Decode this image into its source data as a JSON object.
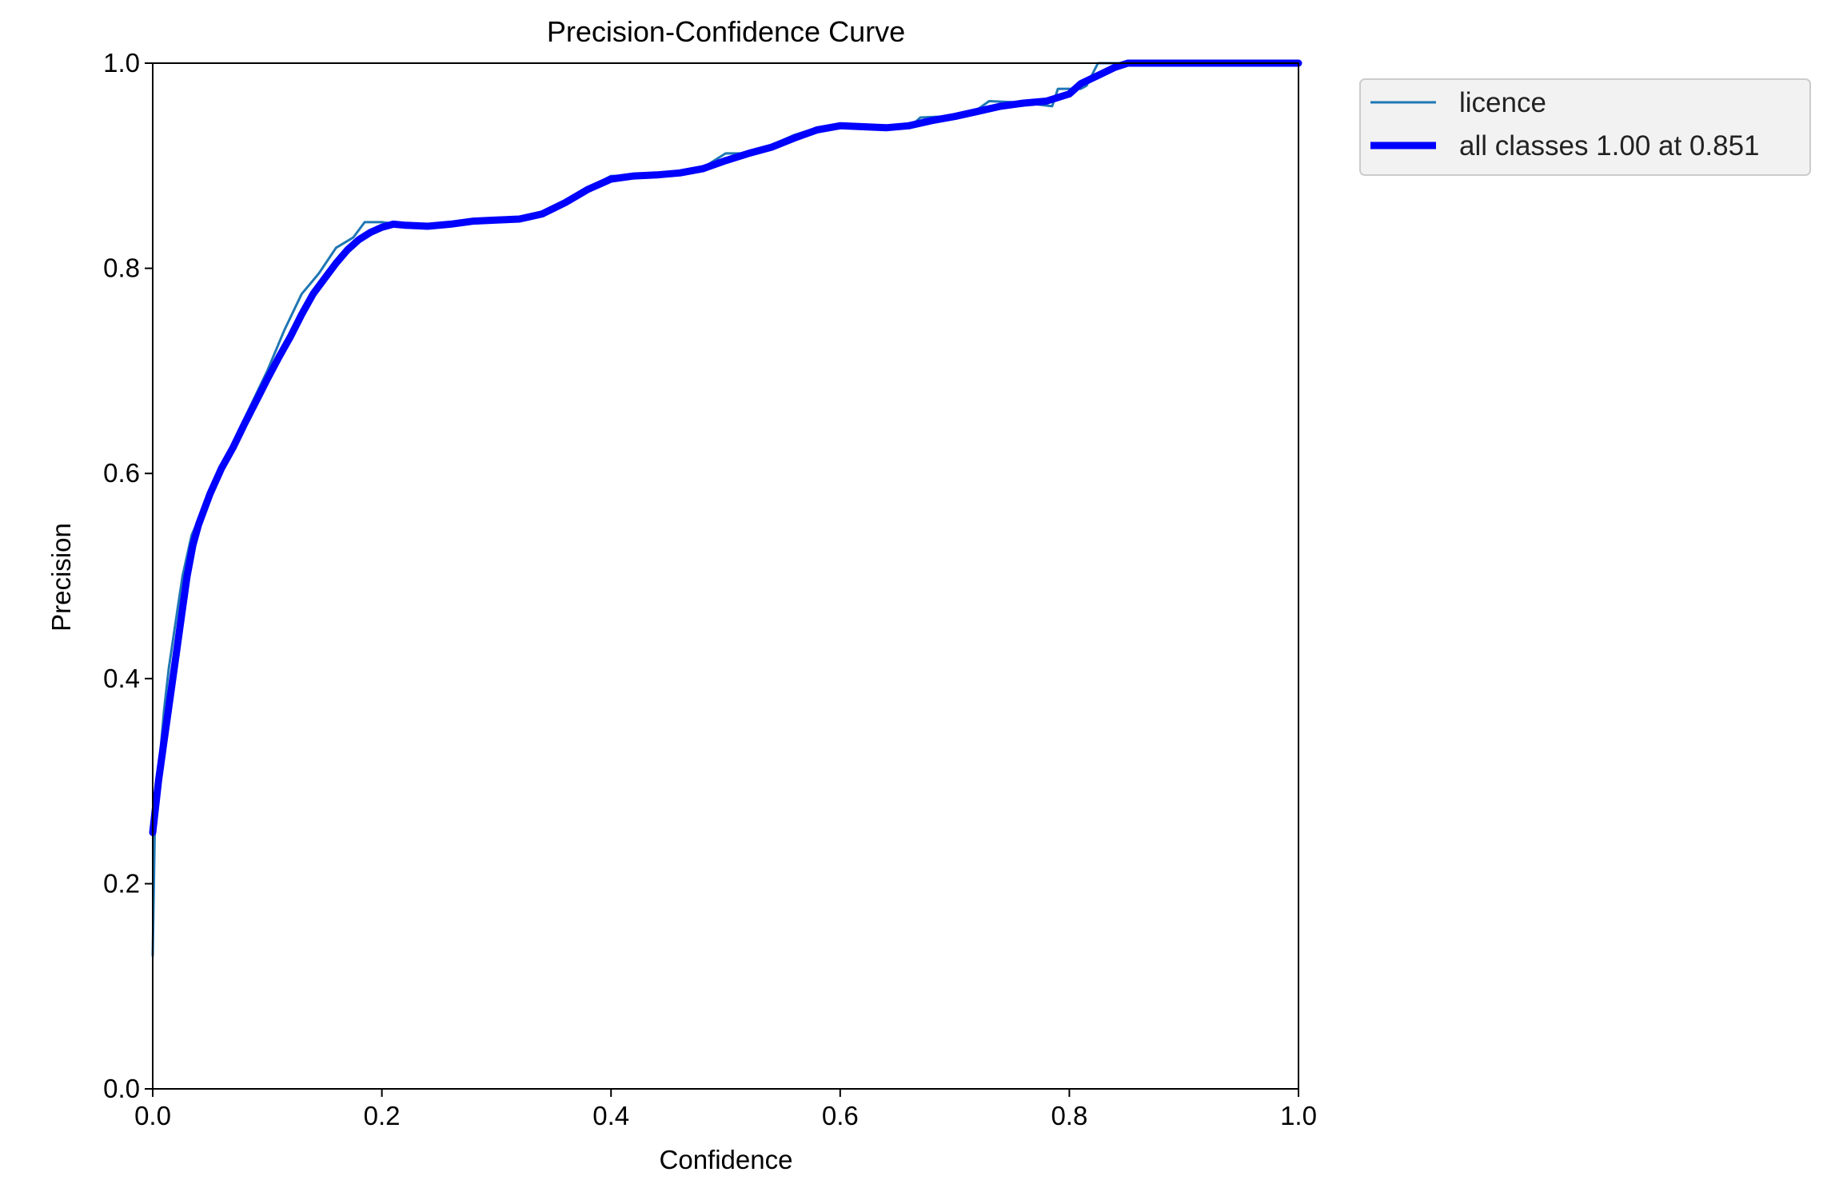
{
  "chart_data": {
    "type": "line",
    "title": "Precision-Confidence Curve",
    "xlabel": "Confidence",
    "ylabel": "Precision",
    "xlim": [
      0.0,
      1.0
    ],
    "ylim": [
      0.0,
      1.0
    ],
    "xticks": [
      "0.0",
      "0.2",
      "0.4",
      "0.6",
      "0.8",
      "1.0"
    ],
    "yticks": [
      "0.0",
      "0.2",
      "0.4",
      "0.6",
      "0.8",
      "1.0"
    ],
    "grid": false,
    "legend_position": "outside-top-right",
    "series": [
      {
        "name": "licence",
        "color": "#1f77b4",
        "style": "thin",
        "points": [
          [
            0.0,
            0.13
          ],
          [
            0.002,
            0.27
          ],
          [
            0.006,
            0.32
          ],
          [
            0.01,
            0.37
          ],
          [
            0.014,
            0.41
          ],
          [
            0.018,
            0.44
          ],
          [
            0.022,
            0.47
          ],
          [
            0.026,
            0.5
          ],
          [
            0.03,
            0.52
          ],
          [
            0.034,
            0.54
          ],
          [
            0.038,
            0.55
          ],
          [
            0.045,
            0.57
          ],
          [
            0.055,
            0.595
          ],
          [
            0.07,
            0.63
          ],
          [
            0.085,
            0.665
          ],
          [
            0.1,
            0.7
          ],
          [
            0.115,
            0.74
          ],
          [
            0.13,
            0.775
          ],
          [
            0.145,
            0.795
          ],
          [
            0.16,
            0.82
          ],
          [
            0.175,
            0.83
          ],
          [
            0.185,
            0.845
          ],
          [
            0.2,
            0.845
          ],
          [
            0.22,
            0.842
          ],
          [
            0.24,
            0.842
          ],
          [
            0.26,
            0.843
          ],
          [
            0.28,
            0.846
          ],
          [
            0.3,
            0.847
          ],
          [
            0.32,
            0.848
          ],
          [
            0.34,
            0.853
          ],
          [
            0.36,
            0.865
          ],
          [
            0.38,
            0.878
          ],
          [
            0.4,
            0.89
          ],
          [
            0.42,
            0.89
          ],
          [
            0.44,
            0.891
          ],
          [
            0.46,
            0.894
          ],
          [
            0.48,
            0.898
          ],
          [
            0.5,
            0.912
          ],
          [
            0.52,
            0.912
          ],
          [
            0.54,
            0.92
          ],
          [
            0.56,
            0.93
          ],
          [
            0.58,
            0.937
          ],
          [
            0.6,
            0.94
          ],
          [
            0.62,
            0.939
          ],
          [
            0.64,
            0.937
          ],
          [
            0.66,
            0.937
          ],
          [
            0.67,
            0.947
          ],
          [
            0.69,
            0.948
          ],
          [
            0.71,
            0.95
          ],
          [
            0.72,
            0.955
          ],
          [
            0.73,
            0.963
          ],
          [
            0.75,
            0.962
          ],
          [
            0.77,
            0.96
          ],
          [
            0.785,
            0.958
          ],
          [
            0.79,
            0.975
          ],
          [
            0.81,
            0.975
          ],
          [
            0.815,
            0.978
          ],
          [
            0.825,
            1.0
          ],
          [
            1.0,
            1.0
          ]
        ]
      },
      {
        "name": "all classes 1.00 at 0.851",
        "color": "#0000ff",
        "style": "thick",
        "points": [
          [
            0.0,
            0.25
          ],
          [
            0.005,
            0.3
          ],
          [
            0.01,
            0.34
          ],
          [
            0.015,
            0.38
          ],
          [
            0.02,
            0.42
          ],
          [
            0.025,
            0.46
          ],
          [
            0.03,
            0.5
          ],
          [
            0.035,
            0.53
          ],
          [
            0.04,
            0.55
          ],
          [
            0.05,
            0.58
          ],
          [
            0.06,
            0.605
          ],
          [
            0.07,
            0.625
          ],
          [
            0.08,
            0.648
          ],
          [
            0.09,
            0.67
          ],
          [
            0.1,
            0.692
          ],
          [
            0.11,
            0.713
          ],
          [
            0.12,
            0.733
          ],
          [
            0.13,
            0.755
          ],
          [
            0.14,
            0.775
          ],
          [
            0.15,
            0.79
          ],
          [
            0.16,
            0.805
          ],
          [
            0.17,
            0.818
          ],
          [
            0.18,
            0.828
          ],
          [
            0.19,
            0.835
          ],
          [
            0.2,
            0.84
          ],
          [
            0.21,
            0.843
          ],
          [
            0.22,
            0.842
          ],
          [
            0.24,
            0.841
          ],
          [
            0.26,
            0.843
          ],
          [
            0.28,
            0.846
          ],
          [
            0.3,
            0.847
          ],
          [
            0.32,
            0.848
          ],
          [
            0.34,
            0.853
          ],
          [
            0.36,
            0.864
          ],
          [
            0.38,
            0.877
          ],
          [
            0.4,
            0.887
          ],
          [
            0.42,
            0.89
          ],
          [
            0.44,
            0.891
          ],
          [
            0.46,
            0.893
          ],
          [
            0.48,
            0.897
          ],
          [
            0.5,
            0.905
          ],
          [
            0.52,
            0.912
          ],
          [
            0.54,
            0.918
          ],
          [
            0.56,
            0.927
          ],
          [
            0.58,
            0.935
          ],
          [
            0.6,
            0.939
          ],
          [
            0.62,
            0.938
          ],
          [
            0.64,
            0.937
          ],
          [
            0.66,
            0.939
          ],
          [
            0.68,
            0.944
          ],
          [
            0.7,
            0.948
          ],
          [
            0.72,
            0.953
          ],
          [
            0.74,
            0.958
          ],
          [
            0.76,
            0.961
          ],
          [
            0.78,
            0.963
          ],
          [
            0.8,
            0.97
          ],
          [
            0.81,
            0.98
          ],
          [
            0.825,
            0.988
          ],
          [
            0.84,
            0.996
          ],
          [
            0.851,
            1.0
          ],
          [
            0.9,
            1.0
          ],
          [
            1.0,
            1.0
          ]
        ]
      }
    ]
  }
}
